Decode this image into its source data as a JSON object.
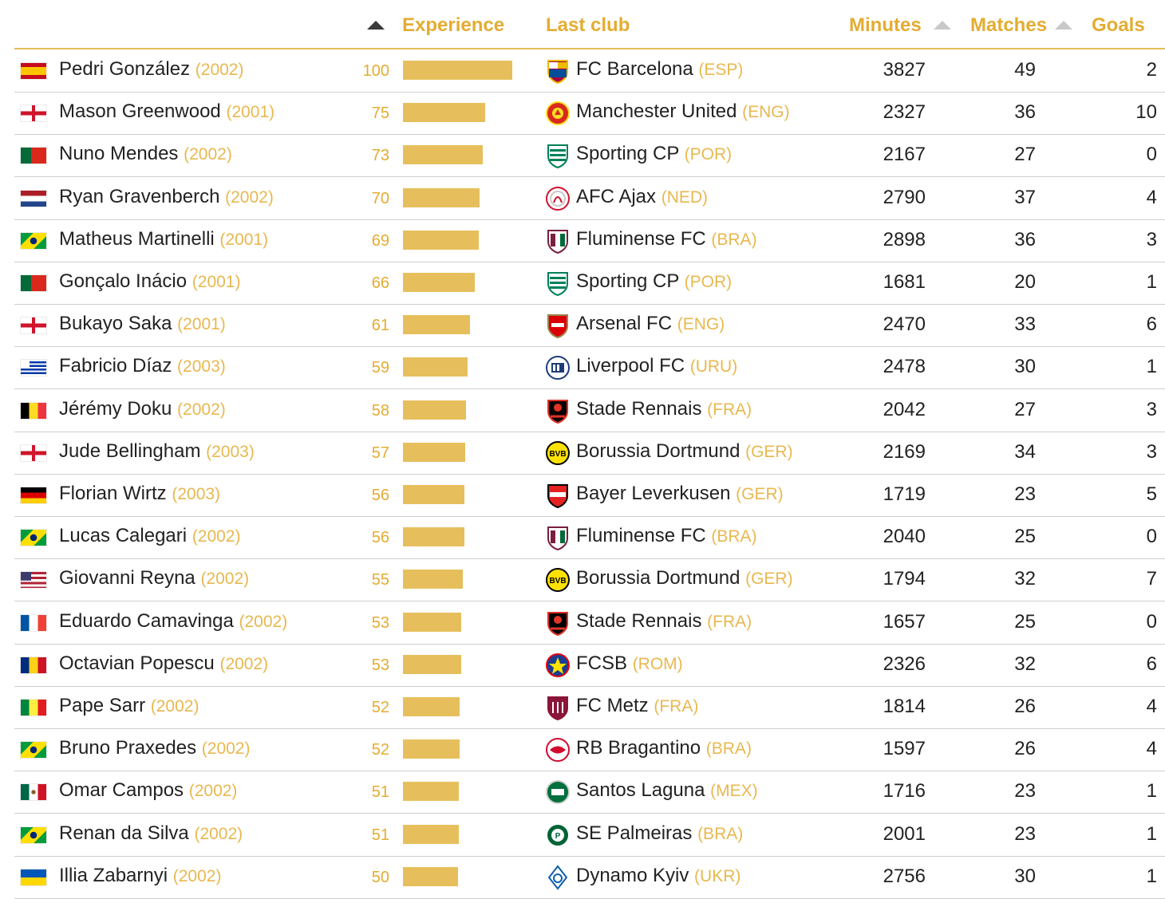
{
  "header": {
    "experience": "Experience",
    "last_club": "Last club",
    "minutes": "Minutes",
    "matches": "Matches",
    "goals": "Goals"
  },
  "colors": {
    "accent": "#e4ac31",
    "bar": "#e6bf5c"
  },
  "rows": [
    {
      "name": "Pedri González",
      "year": "(2002)",
      "flag": "esp",
      "experience": 100,
      "club": "FC Barcelona",
      "country": "(ESP)",
      "badge": "barcelona-crest-icon",
      "minutes": "3827",
      "matches": "49",
      "goals": "2"
    },
    {
      "name": "Mason Greenwood",
      "year": "(2001)",
      "flag": "eng",
      "experience": 75,
      "club": "Manchester United",
      "country": "(ENG)",
      "badge": "manchester-united-crest-icon",
      "minutes": "2327",
      "matches": "36",
      "goals": "10"
    },
    {
      "name": "Nuno Mendes",
      "year": "(2002)",
      "flag": "por",
      "experience": 73,
      "club": "Sporting CP",
      "country": "(POR)",
      "badge": "sporting-crest-icon",
      "minutes": "2167",
      "matches": "27",
      "goals": "0"
    },
    {
      "name": "Ryan Gravenberch",
      "year": "(2002)",
      "flag": "ned",
      "experience": 70,
      "club": "AFC Ajax",
      "country": "(NED)",
      "badge": "ajax-crest-icon",
      "minutes": "2790",
      "matches": "37",
      "goals": "4"
    },
    {
      "name": "Matheus Martinelli",
      "year": "(2001)",
      "flag": "bra",
      "experience": 69,
      "club": "Fluminense FC",
      "country": "(BRA)",
      "badge": "fluminense-crest-icon",
      "minutes": "2898",
      "matches": "36",
      "goals": "3"
    },
    {
      "name": "Gonçalo Inácio",
      "year": "(2001)",
      "flag": "por",
      "experience": 66,
      "club": "Sporting CP",
      "country": "(POR)",
      "badge": "sporting-crest-icon",
      "minutes": "1681",
      "matches": "20",
      "goals": "1"
    },
    {
      "name": "Bukayo Saka",
      "year": "(2001)",
      "flag": "eng",
      "experience": 61,
      "club": "Arsenal FC",
      "country": "(ENG)",
      "badge": "arsenal-crest-icon",
      "minutes": "2470",
      "matches": "33",
      "goals": "6"
    },
    {
      "name": "Fabricio Díaz",
      "year": "(2003)",
      "flag": "uru",
      "experience": 59,
      "club": "Liverpool FC",
      "country": "(URU)",
      "badge": "liverpool-uru-crest-icon",
      "minutes": "2478",
      "matches": "30",
      "goals": "1"
    },
    {
      "name": "Jérémy Doku",
      "year": "(2002)",
      "flag": "bel",
      "experience": 58,
      "club": "Stade Rennais",
      "country": "(FRA)",
      "badge": "rennes-crest-icon",
      "minutes": "2042",
      "matches": "27",
      "goals": "3"
    },
    {
      "name": "Jude Bellingham",
      "year": "(2003)",
      "flag": "eng",
      "experience": 57,
      "club": "Borussia Dortmund",
      "country": "(GER)",
      "badge": "dortmund-crest-icon",
      "minutes": "2169",
      "matches": "34",
      "goals": "3"
    },
    {
      "name": "Florian Wirtz",
      "year": "(2003)",
      "flag": "ger",
      "experience": 56,
      "club": "Bayer Leverkusen",
      "country": "(GER)",
      "badge": "leverkusen-crest-icon",
      "minutes": "1719",
      "matches": "23",
      "goals": "5"
    },
    {
      "name": "Lucas Calegari",
      "year": "(2002)",
      "flag": "bra",
      "experience": 56,
      "club": "Fluminense FC",
      "country": "(BRA)",
      "badge": "fluminense-crest-icon",
      "minutes": "2040",
      "matches": "25",
      "goals": "0"
    },
    {
      "name": "Giovanni Reyna",
      "year": "(2002)",
      "flag": "usa",
      "experience": 55,
      "club": "Borussia Dortmund",
      "country": "(GER)",
      "badge": "dortmund-crest-icon",
      "minutes": "1794",
      "matches": "32",
      "goals": "7"
    },
    {
      "name": "Eduardo Camavinga",
      "year": "(2002)",
      "flag": "fra",
      "experience": 53,
      "club": "Stade Rennais",
      "country": "(FRA)",
      "badge": "rennes-crest-icon",
      "minutes": "1657",
      "matches": "25",
      "goals": "0"
    },
    {
      "name": "Octavian Popescu",
      "year": "(2002)",
      "flag": "rom",
      "experience": 53,
      "club": "FCSB",
      "country": "(ROM)",
      "badge": "fcsb-crest-icon",
      "minutes": "2326",
      "matches": "32",
      "goals": "6"
    },
    {
      "name": "Pape Sarr",
      "year": "(2002)",
      "flag": "sen",
      "experience": 52,
      "club": "FC Metz",
      "country": "(FRA)",
      "badge": "metz-crest-icon",
      "minutes": "1814",
      "matches": "26",
      "goals": "4"
    },
    {
      "name": "Bruno Praxedes",
      "year": "(2002)",
      "flag": "bra",
      "experience": 52,
      "club": "RB Bragantino",
      "country": "(BRA)",
      "badge": "bragantino-crest-icon",
      "minutes": "1597",
      "matches": "26",
      "goals": "4"
    },
    {
      "name": "Omar Campos",
      "year": "(2002)",
      "flag": "mex",
      "experience": 51,
      "club": "Santos Laguna",
      "country": "(MEX)",
      "badge": "santos-laguna-crest-icon",
      "minutes": "1716",
      "matches": "23",
      "goals": "1"
    },
    {
      "name": "Renan da Silva",
      "year": "(2002)",
      "flag": "bra",
      "experience": 51,
      "club": "SE Palmeiras",
      "country": "(BRA)",
      "badge": "palmeiras-crest-icon",
      "minutes": "2001",
      "matches": "23",
      "goals": "1"
    },
    {
      "name": "Illia Zabarnyi",
      "year": "(2002)",
      "flag": "ukr",
      "experience": 50,
      "club": "Dynamo Kyiv",
      "country": "(UKR)",
      "badge": "dynamo-kyiv-crest-icon",
      "minutes": "2756",
      "matches": "30",
      "goals": "1"
    }
  ]
}
